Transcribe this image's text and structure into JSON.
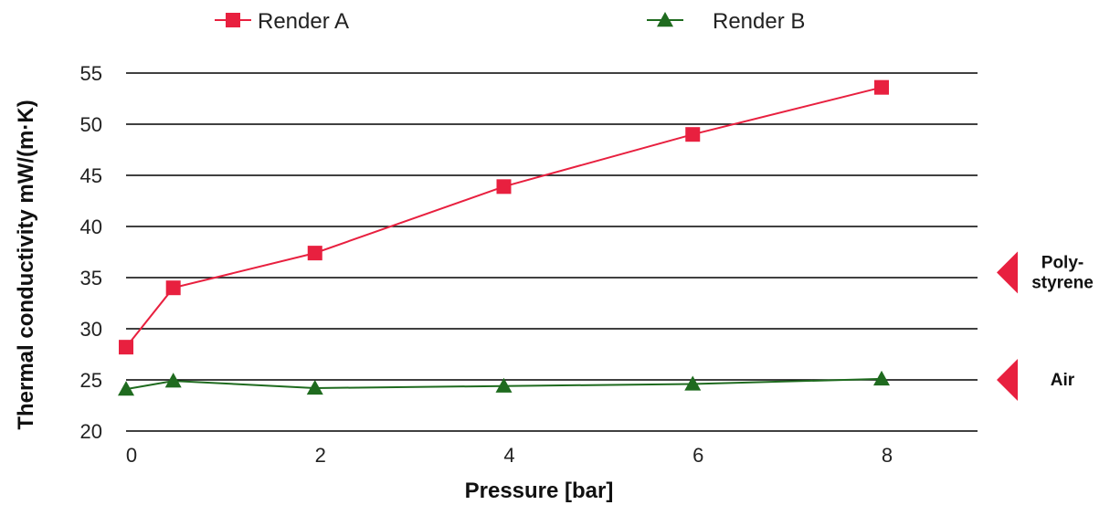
{
  "chart_data": {
    "type": "line",
    "xlabel": "Pressure [bar]",
    "ylabel": "Thermal conductivity mW/(m·K)",
    "xlim": [
      0,
      8
    ],
    "ylim": [
      20,
      55
    ],
    "x_ticks": [
      0,
      2,
      4,
      6,
      8
    ],
    "y_ticks": [
      20,
      25,
      30,
      35,
      40,
      45,
      50,
      55
    ],
    "grid": "horizontal",
    "legend_position": "top",
    "series": [
      {
        "name": "Render A",
        "color": "#e8203f",
        "marker": "square",
        "x": [
          0,
          0.5,
          2,
          4,
          6,
          8
        ],
        "y": [
          28.2,
          34.0,
          37.4,
          43.9,
          49.0,
          53.6
        ]
      },
      {
        "name": "Render B",
        "color": "#1f6b1f",
        "marker": "triangle",
        "x": [
          0,
          0.5,
          2,
          4,
          6,
          8
        ],
        "y": [
          24.1,
          24.9,
          24.2,
          24.4,
          24.6,
          25.1
        ]
      }
    ],
    "reference_markers": [
      {
        "label_lines": [
          "Poly-",
          "styrene"
        ],
        "value": 35.5,
        "color": "#e8203f"
      },
      {
        "label_lines": [
          "Air"
        ],
        "value": 25.0,
        "color": "#e8203f"
      }
    ]
  }
}
